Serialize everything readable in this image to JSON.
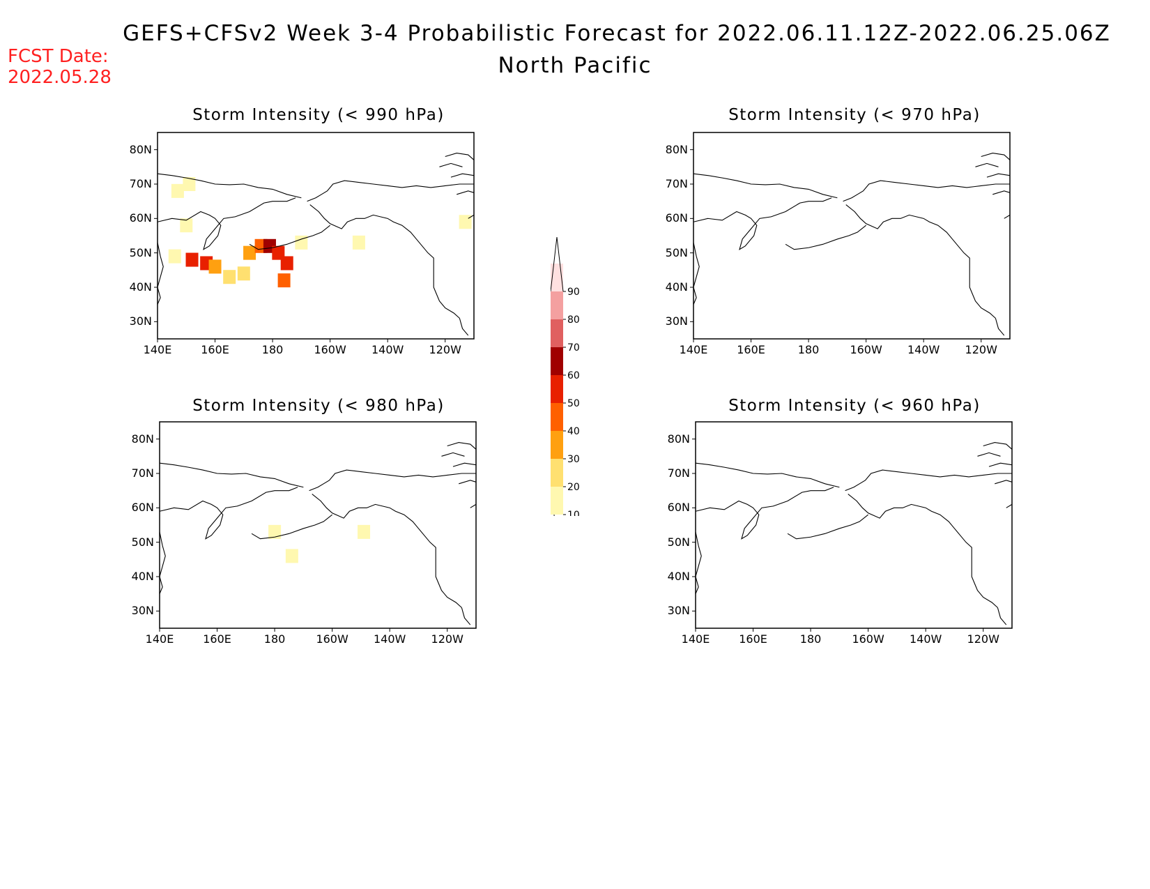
{
  "header": {
    "title_line1": "GEFS+CFSv2 Week 3-4 Probabilistic Forecast for 2022.06.11.12Z-2022.06.25.06Z",
    "title_line2": "North Pacific",
    "fcst_label": "FCST Date:",
    "fcst_date": "2022.05.28"
  },
  "panels": [
    {
      "id": "p990",
      "title": "Storm Intensity (< 990 hPa)"
    },
    {
      "id": "p970",
      "title": "Storm Intensity (< 970 hPa)"
    },
    {
      "id": "p980",
      "title": "Storm Intensity (< 980 hPa)"
    },
    {
      "id": "p960",
      "title": "Storm Intensity (< 960 hPa)"
    }
  ],
  "axes": {
    "lat_labels": [
      "80N",
      "70N",
      "60N",
      "50N",
      "40N",
      "30N"
    ],
    "lat_values": [
      80,
      70,
      60,
      50,
      40,
      30
    ],
    "lon_labels": [
      "140E",
      "160E",
      "180",
      "160W",
      "140W",
      "120W"
    ],
    "lon_values": [
      140,
      160,
      180,
      200,
      220,
      240
    ],
    "lon_range": [
      140,
      250
    ],
    "lat_range": [
      25,
      85
    ]
  },
  "colorbar": {
    "labels": [
      "10",
      "20",
      "30",
      "40",
      "50",
      "60",
      "70",
      "80",
      "90"
    ],
    "levels": [
      10,
      20,
      30,
      40,
      50,
      60,
      70,
      80,
      90
    ],
    "colors": [
      "#fff8b0",
      "#ffe070",
      "#ffa010",
      "#ff6000",
      "#e82000",
      "#a00000",
      "#e06060",
      "#f4a0a0",
      "#ffe0e0"
    ]
  },
  "chart_data": {
    "type": "heatmap",
    "units": "probability (%)",
    "fields": {
      "p990": [
        {
          "lon": 147,
          "lat": 68,
          "prob": 15
        },
        {
          "lon": 151,
          "lat": 70,
          "prob": 15
        },
        {
          "lon": 150,
          "lat": 58,
          "prob": 15
        },
        {
          "lon": 146,
          "lat": 49,
          "prob": 15
        },
        {
          "lon": 152,
          "lat": 48,
          "prob": 55
        },
        {
          "lon": 157,
          "lat": 47,
          "prob": 55
        },
        {
          "lon": 160,
          "lat": 46,
          "prob": 35
        },
        {
          "lon": 165,
          "lat": 43,
          "prob": 25
        },
        {
          "lon": 170,
          "lat": 44,
          "prob": 20
        },
        {
          "lon": 172,
          "lat": 50,
          "prob": 35
        },
        {
          "lon": 176,
          "lat": 52,
          "prob": 40
        },
        {
          "lon": 179,
          "lat": 52,
          "prob": 65
        },
        {
          "lon": 182,
          "lat": 50,
          "prob": 55
        },
        {
          "lon": 185,
          "lat": 47,
          "prob": 55
        },
        {
          "lon": 184,
          "lat": 42,
          "prob": 45
        },
        {
          "lon": 190,
          "lat": 53,
          "prob": 15
        },
        {
          "lon": 210,
          "lat": 53,
          "prob": 15
        },
        {
          "lon": 247,
          "lat": 59,
          "prob": 15
        }
      ],
      "p980": [
        {
          "lon": 180,
          "lat": 53,
          "prob": 15
        },
        {
          "lon": 186,
          "lat": 46,
          "prob": 15
        },
        {
          "lon": 211,
          "lat": 53,
          "prob": 15
        }
      ],
      "p970": [],
      "p960": []
    }
  }
}
